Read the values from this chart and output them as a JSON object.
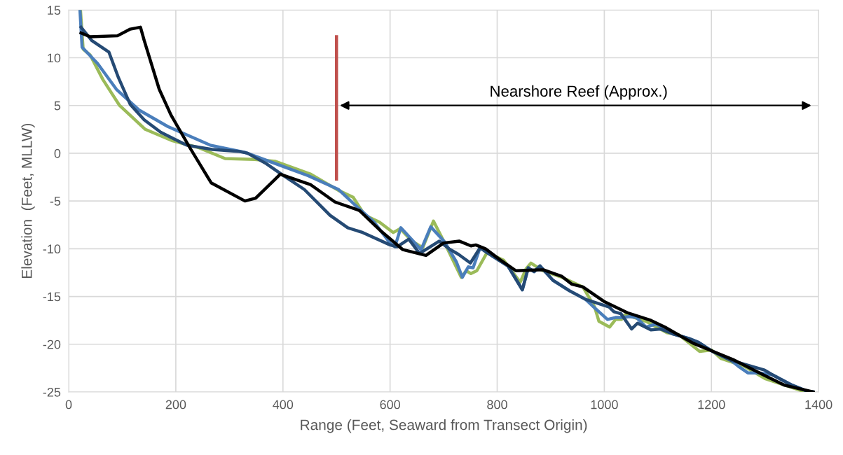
{
  "chart_data": {
    "type": "line",
    "xlabel": "Range (Feet, Seaward from Transect Origin)",
    "ylabel": "Elevation  (Feet, MLLW)",
    "xlim": [
      0,
      1400
    ],
    "xticks": [
      0,
      200,
      400,
      600,
      800,
      1000,
      1200,
      1400
    ],
    "ylim": [
      -25,
      15
    ],
    "yticks": [
      -25,
      -20,
      -15,
      -10,
      -5,
      0,
      5,
      10,
      15
    ],
    "grid": true,
    "marker": "none",
    "line_style": "solid",
    "annotations": [
      "Nearshore Reef (Approx.)"
    ],
    "series": [
      {
        "color": "#9bbb59",
        "x": [
          22,
          27,
          40,
          64,
          95,
          143,
          194,
          242,
          292,
          347,
          386,
          452,
          504,
          531,
          553,
          580,
          606,
          619,
          641,
          661,
          681,
          702,
          733,
          742,
          751,
          762,
          781,
          812,
          843,
          854,
          863,
          885,
          921,
          960,
          982,
          990,
          1010,
          1021,
          1032,
          1039,
          1078,
          1117,
          1139,
          1178,
          1200,
          1218,
          1261,
          1300,
          1370,
          1390
        ],
        "values": [
          15,
          10.9,
          10.3,
          7.7,
          5.0,
          2.5,
          1.3,
          0.6,
          -0.55,
          -0.65,
          -0.85,
          -2.2,
          -3.9,
          -4.6,
          -6.5,
          -7.2,
          -8.3,
          -7.9,
          -9.2,
          -9.9,
          -7.1,
          -9.4,
          -13.0,
          -12.3,
          -12.6,
          -12.3,
          -10.4,
          -11.2,
          -13.5,
          -12.1,
          -11.5,
          -12.3,
          -13.0,
          -14.0,
          -16.1,
          -17.6,
          -18.2,
          -17.4,
          -17.4,
          -16.9,
          -17.6,
          -18.8,
          -19.0,
          -20.75,
          -20.6,
          -21.5,
          -22.3,
          -23.6,
          -24.9,
          -25.0
        ]
      },
      {
        "color": "#4a7ebb",
        "x": [
          21,
          25,
          54,
          89,
          132,
          185,
          264,
          329,
          382,
          447,
          504,
          540,
          570,
          600,
          609,
          620,
          658,
          676,
          702,
          724,
          735,
          746,
          755,
          768,
          803,
          820,
          847,
          858,
          869,
          880,
          904,
          935,
          965,
          982,
          1006,
          1021,
          1034,
          1047,
          1060,
          1078,
          1096,
          1109,
          1127,
          1158,
          1176,
          1202,
          1237,
          1250,
          1268,
          1290,
          1314,
          1351,
          1378,
          1390
        ],
        "values": [
          15,
          11.1,
          9.4,
          6.7,
          4.5,
          2.8,
          0.85,
          0.1,
          -1.0,
          -2.35,
          -3.8,
          -5.7,
          -7.2,
          -9.4,
          -9.8,
          -7.8,
          -10.1,
          -7.7,
          -9.3,
          -11.4,
          -13.0,
          -11.9,
          -12.0,
          -9.9,
          -11.2,
          -11.8,
          -14.3,
          -12.0,
          -12.4,
          -11.8,
          -13.3,
          -14.4,
          -15.3,
          -16.2,
          -17.4,
          -17.2,
          -17.2,
          -17.1,
          -17.2,
          -18.2,
          -17.9,
          -18.2,
          -18.9,
          -19.4,
          -19.8,
          -20.75,
          -21.7,
          -22.3,
          -23.0,
          -23.0,
          -23.2,
          -24.3,
          -24.9,
          -25.0
        ]
      },
      {
        "color": "#254a74",
        "x": [
          23,
          43,
          75,
          93,
          115,
          141,
          172,
          220,
          268,
          317,
          334,
          369,
          400,
          440,
          488,
          521,
          549,
          600,
          613,
          635,
          655,
          692,
          710,
          728,
          750,
          768,
          781,
          803,
          820,
          847,
          858,
          869,
          880,
          904,
          935,
          965,
          1009,
          1018,
          1031,
          1051,
          1062,
          1087,
          1105,
          1127,
          1158,
          1176,
          1202,
          1237,
          1299,
          1314,
          1351,
          1378,
          1390
        ],
        "values": [
          13.2,
          11.8,
          10.6,
          7.9,
          5.1,
          3.5,
          2.2,
          0.85,
          0.4,
          0.2,
          0.0,
          -1.1,
          -2.3,
          -3.8,
          -6.5,
          -7.8,
          -8.3,
          -9.6,
          -9.8,
          -9.0,
          -10.5,
          -9.2,
          -10.0,
          -10.6,
          -11.5,
          -9.9,
          -10.4,
          -11.2,
          -11.8,
          -14.3,
          -12.0,
          -12.4,
          -11.8,
          -13.3,
          -14.4,
          -15.3,
          -16.1,
          -16.6,
          -16.8,
          -18.4,
          -17.8,
          -18.5,
          -18.4,
          -18.9,
          -19.4,
          -19.8,
          -20.75,
          -21.7,
          -22.7,
          -23.2,
          -24.3,
          -24.9,
          -25.0
        ]
      },
      {
        "color": "#000000",
        "x": [
          23,
          40,
          91,
          115,
          134,
          141,
          169,
          191,
          226,
          266,
          329,
          349,
          395,
          452,
          497,
          543,
          584,
          624,
          667,
          700,
          729,
          751,
          760,
          778,
          804,
          835,
          886,
          921,
          939,
          960,
          999,
          1043,
          1087,
          1113,
          1166,
          1240,
          1293,
          1337,
          1390
        ],
        "values": [
          12.6,
          12.2,
          12.3,
          13.0,
          13.2,
          11.8,
          6.7,
          4.0,
          0.6,
          -3.1,
          -5.0,
          -4.7,
          -2.2,
          -3.3,
          -5.1,
          -6.0,
          -8.2,
          -10.1,
          -10.7,
          -9.4,
          -9.2,
          -9.7,
          -9.6,
          -10.0,
          -11.1,
          -12.3,
          -12.2,
          -12.9,
          -13.7,
          -14.0,
          -15.5,
          -16.7,
          -17.5,
          -18.2,
          -19.9,
          -21.6,
          -23.1,
          -24.3,
          -25.0
        ]
      },
      {
        "color": "#c0504d",
        "x": [
          500,
          500
        ],
        "values": [
          12.2,
          -2.7
        ]
      }
    ]
  }
}
